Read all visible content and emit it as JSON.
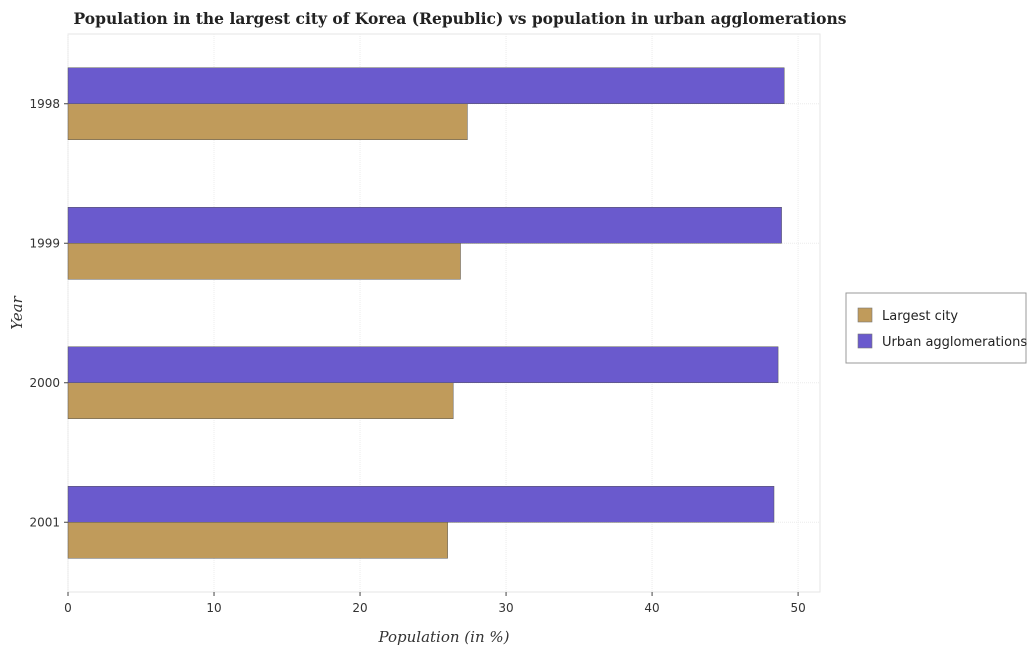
{
  "chart_data": {
    "type": "bar",
    "orientation": "horizontal",
    "title": "Population in the largest city of Korea (Republic) vs population in urban agglomerations",
    "xlabel": "Population (in %)",
    "ylabel": "Year",
    "categories": [
      "1998",
      "1999",
      "2000",
      "2001"
    ],
    "series": [
      {
        "name": "Largest city",
        "color": "#c09b5b",
        "values": [
          27.35,
          26.88,
          26.38,
          26.0
        ]
      },
      {
        "name": "Urban agglomerations",
        "color": "#6a5acd",
        "values": [
          49.05,
          48.87,
          48.63,
          48.35
        ]
      }
    ],
    "xlim": [
      0,
      51.5
    ],
    "xticks": [
      0,
      10,
      20,
      30,
      40,
      50
    ],
    "grid": true,
    "legend_position": "right"
  }
}
